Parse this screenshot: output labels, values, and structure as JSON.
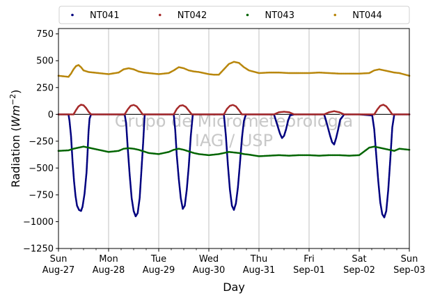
{
  "chart_data": {
    "type": "scatter",
    "ylabel_prefix": "Radiation (",
    "ylabel_unit": "Wm",
    "ylabel_exp": "−2",
    "ylabel_suffix": ")",
    "xlabel": "Day",
    "ylim": [
      -1250,
      800
    ],
    "yticks": [
      -1250,
      -1000,
      -750,
      -500,
      -250,
      0,
      250,
      500,
      750
    ],
    "ytick_labels": [
      "−1250",
      "−1000",
      "−750",
      "−500",
      "−250",
      "0",
      "250",
      "500",
      "750"
    ],
    "xlim_days": [
      0,
      7
    ],
    "xticks": [
      {
        "day": 0,
        "line1": "Sun",
        "line2": "Aug-27"
      },
      {
        "day": 1,
        "line1": "Mon",
        "line2": "Aug-28"
      },
      {
        "day": 2,
        "line1": "Tue",
        "line2": "Aug-29"
      },
      {
        "day": 3,
        "line1": "Wed",
        "line2": "Aug-30"
      },
      {
        "day": 4,
        "line1": "Thu",
        "line2": "Aug-31"
      },
      {
        "day": 5,
        "line1": "Fri",
        "line2": "Sep-01"
      },
      {
        "day": 6,
        "line1": "Sat",
        "line2": "Sep-02"
      },
      {
        "day": 7,
        "line1": "Sun",
        "line2": "Sep-03"
      }
    ],
    "grid": "vertical",
    "zero_line": 0,
    "legend_placement": "top",
    "watermark_lines": [
      "Grupo de Micrometeorologia",
      "IAG / USP"
    ],
    "series": [
      {
        "name": "NT041",
        "color": "#00007f",
        "x": [
          0.0,
          0.2,
          0.22,
          0.25,
          0.28,
          0.31,
          0.34,
          0.37,
          0.41,
          0.45,
          0.48,
          0.52,
          0.56,
          0.58,
          0.6,
          0.62,
          0.65,
          0.7,
          1.0,
          1.32,
          1.35,
          1.38,
          1.42,
          1.46,
          1.5,
          1.54,
          1.58,
          1.62,
          1.65,
          1.69,
          1.72,
          2.0,
          2.3,
          2.33,
          2.36,
          2.4,
          2.44,
          2.48,
          2.52,
          2.56,
          2.6,
          2.64,
          2.68,
          3.0,
          3.3,
          3.34,
          3.38,
          3.42,
          3.46,
          3.5,
          3.54,
          3.58,
          3.62,
          3.66,
          3.7,
          3.74,
          4.0,
          4.3,
          4.34,
          4.38,
          4.42,
          4.46,
          4.5,
          4.54,
          4.58,
          4.62,
          4.7,
          5.0,
          5.3,
          5.34,
          5.38,
          5.42,
          5.46,
          5.5,
          5.54,
          5.58,
          5.62,
          5.7,
          6.0,
          6.26,
          6.3,
          6.34,
          6.38,
          6.42,
          6.46,
          6.5,
          6.54,
          6.58,
          6.62,
          6.66,
          6.7,
          7.0
        ],
        "y": [
          0,
          0,
          -60,
          -200,
          -430,
          -620,
          -760,
          -850,
          -890,
          -900,
          -860,
          -740,
          -540,
          -360,
          -160,
          -40,
          0,
          0,
          0,
          0,
          -80,
          -300,
          -560,
          -780,
          -900,
          -950,
          -920,
          -780,
          -560,
          -260,
          0,
          0,
          0,
          -150,
          -380,
          -600,
          -780,
          -880,
          -850,
          -700,
          -480,
          -200,
          0,
          0,
          0,
          -200,
          -470,
          -700,
          -850,
          -890,
          -830,
          -680,
          -460,
          -220,
          -60,
          0,
          0,
          0,
          -60,
          -120,
          -180,
          -220,
          -200,
          -140,
          -60,
          -10,
          0,
          0,
          0,
          -60,
          -130,
          -200,
          -260,
          -280,
          -220,
          -140,
          -50,
          0,
          0,
          -10,
          -140,
          -380,
          -620,
          -820,
          -930,
          -960,
          -900,
          -700,
          -420,
          -120,
          0,
          0
        ]
      },
      {
        "name": "NT042",
        "color": "#a52a2a",
        "x": [
          0.0,
          0.3,
          0.35,
          0.4,
          0.45,
          0.5,
          0.55,
          0.6,
          0.65,
          1.0,
          1.32,
          1.38,
          1.44,
          1.5,
          1.56,
          1.62,
          1.68,
          2.0,
          2.3,
          2.36,
          2.42,
          2.48,
          2.54,
          2.6,
          2.66,
          3.0,
          3.3,
          3.36,
          3.42,
          3.48,
          3.54,
          3.6,
          3.66,
          4.0,
          4.3,
          4.4,
          4.5,
          4.6,
          4.7,
          5.0,
          5.3,
          5.4,
          5.5,
          5.6,
          5.7,
          6.0,
          6.3,
          6.36,
          6.42,
          6.48,
          6.54,
          6.6,
          6.66,
          7.0
        ],
        "y": [
          0,
          0,
          40,
          75,
          90,
          85,
          60,
          25,
          0,
          0,
          0,
          45,
          80,
          88,
          75,
          40,
          0,
          0,
          0,
          50,
          80,
          85,
          70,
          35,
          0,
          0,
          0,
          50,
          80,
          88,
          75,
          40,
          0,
          0,
          0,
          20,
          25,
          20,
          0,
          0,
          0,
          20,
          30,
          20,
          0,
          0,
          0,
          45,
          80,
          90,
          75,
          40,
          0,
          0
        ]
      },
      {
        "name": "NT043",
        "color": "#006400",
        "x": [
          0.0,
          0.2,
          0.3,
          0.4,
          0.5,
          0.6,
          0.7,
          0.8,
          1.0,
          1.2,
          1.3,
          1.4,
          1.5,
          1.6,
          1.7,
          1.8,
          2.0,
          2.2,
          2.3,
          2.4,
          2.5,
          2.6,
          2.7,
          2.8,
          3.0,
          3.2,
          3.3,
          3.4,
          3.5,
          3.6,
          3.7,
          3.8,
          4.0,
          4.2,
          4.4,
          4.6,
          4.8,
          5.0,
          5.2,
          5.4,
          5.6,
          5.8,
          6.0,
          6.2,
          6.3,
          6.4,
          6.5,
          6.6,
          6.7,
          6.8,
          7.0
        ],
        "y": [
          -340,
          -335,
          -320,
          -310,
          -300,
          -310,
          -320,
          -330,
          -350,
          -340,
          -320,
          -315,
          -320,
          -330,
          -345,
          -360,
          -370,
          -350,
          -330,
          -320,
          -330,
          -345,
          -360,
          -370,
          -380,
          -370,
          -360,
          -350,
          -355,
          -360,
          -370,
          -375,
          -390,
          -385,
          -380,
          -385,
          -380,
          -380,
          -385,
          -380,
          -380,
          -385,
          -380,
          -310,
          -300,
          -310,
          -320,
          -330,
          -340,
          -320,
          -330
        ]
      },
      {
        "name": "NT044",
        "color": "#b8860b",
        "x": [
          0.0,
          0.1,
          0.2,
          0.25,
          0.3,
          0.35,
          0.4,
          0.45,
          0.5,
          0.6,
          0.7,
          0.8,
          1.0,
          1.2,
          1.3,
          1.4,
          1.5,
          1.6,
          1.7,
          1.8,
          2.0,
          2.2,
          2.3,
          2.4,
          2.5,
          2.6,
          2.7,
          2.8,
          3.0,
          3.1,
          3.2,
          3.3,
          3.4,
          3.5,
          3.6,
          3.7,
          3.8,
          4.0,
          4.2,
          4.4,
          4.6,
          4.8,
          5.0,
          5.2,
          5.4,
          5.6,
          5.8,
          6.0,
          6.2,
          6.3,
          6.4,
          6.5,
          6.6,
          6.7,
          6.8,
          7.0
        ],
        "y": [
          360,
          355,
          350,
          380,
          420,
          450,
          460,
          440,
          410,
          395,
          390,
          385,
          375,
          390,
          420,
          430,
          420,
          400,
          390,
          385,
          375,
          385,
          410,
          440,
          430,
          410,
          400,
          395,
          375,
          370,
          370,
          420,
          470,
          490,
          480,
          440,
          410,
          385,
          390,
          390,
          385,
          385,
          385,
          390,
          385,
          380,
          380,
          380,
          385,
          410,
          420,
          410,
          400,
          390,
          385,
          360
        ]
      }
    ]
  }
}
